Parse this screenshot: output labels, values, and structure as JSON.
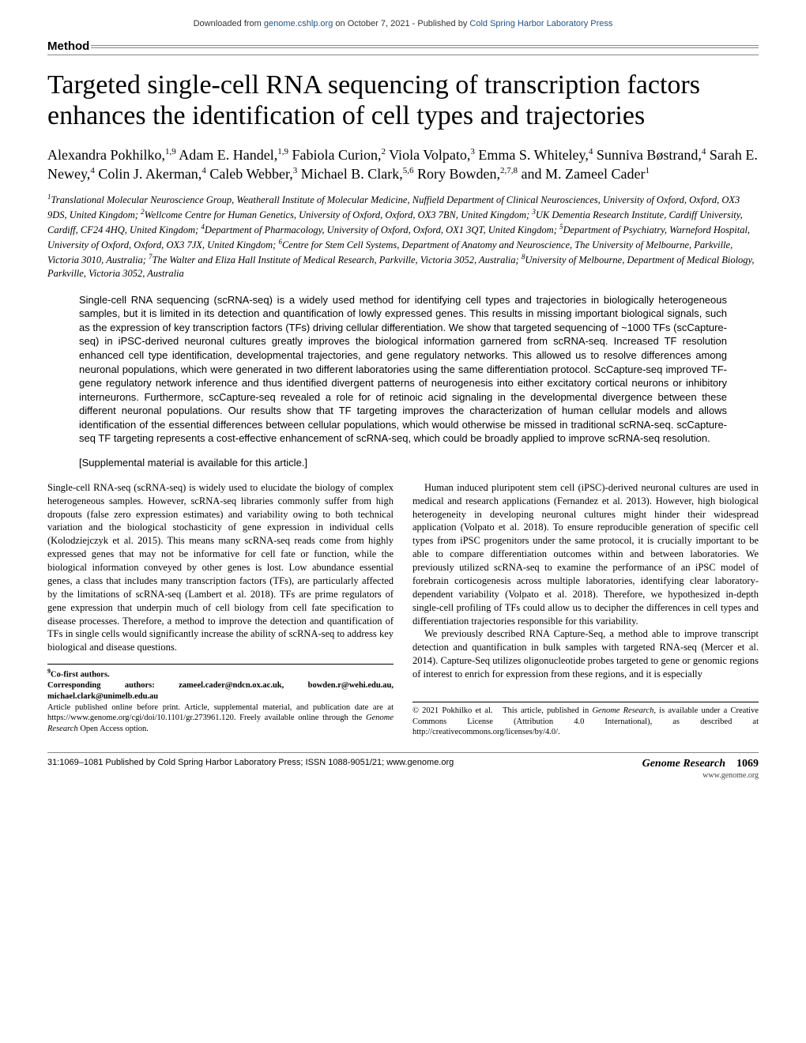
{
  "download_bar": {
    "prefix": "Downloaded from ",
    "link1": "genome.cshlp.org",
    "mid": " on October 7, 2021 - Published by ",
    "link2": "Cold Spring Harbor Laboratory Press"
  },
  "section_label": "Method",
  "title": "Targeted single-cell RNA sequencing of transcription factors enhances the identification of cell types and trajectories",
  "authors_html": "Alexandra Pokhilko,<sup>1,9</sup> Adam E. Handel,<sup>1,9</sup> Fabiola Curion,<sup>2</sup> Viola Volpato,<sup>3</sup> Emma S. Whiteley,<sup>4</sup> Sunniva Bøstrand,<sup>4</sup> Sarah E. Newey,<sup>4</sup> Colin J. Akerman,<sup>4</sup> Caleb Webber,<sup>3</sup> Michael B. Clark,<sup>5,6</sup> Rory Bowden,<sup>2,7,8</sup> and M. Zameel Cader<sup>1</sup>",
  "affiliations_html": "<sup>1</sup>Translational Molecular Neuroscience Group, Weatherall Institute of Molecular Medicine, Nuffield Department of Clinical Neurosciences, University of Oxford, Oxford, OX3 9DS, United Kingdom; <sup>2</sup>Wellcome Centre for Human Genetics, University of Oxford, Oxford, OX3 7BN, United Kingdom; <sup>3</sup>UK Dementia Research Institute, Cardiff University, Cardiff, CF24 4HQ, United Kingdom; <sup>4</sup>Department of Pharmacology, University of Oxford, Oxford, OX1 3QT, United Kingdom; <sup>5</sup>Department of Psychiatry, Warneford Hospital, University of Oxford, Oxford, OX3 7JX, United Kingdom; <sup>6</sup>Centre for Stem Cell Systems, Department of Anatomy and Neuroscience, The University of Melbourne, Parkville, Victoria 3010, Australia; <sup>7</sup>The Walter and Eliza Hall Institute of Medical Research, Parkville, Victoria 3052, Australia; <sup>8</sup>University of Melbourne, Department of Medical Biology, Parkville, Victoria 3052, Australia",
  "abstract": "Single-cell RNA sequencing (scRNA-seq) is a widely used method for identifying cell types and trajectories in biologically heterogeneous samples, but it is limited in its detection and quantification of lowly expressed genes. This results in missing important biological signals, such as the expression of key transcription factors (TFs) driving cellular differentiation. We show that targeted sequencing of ~1000 TFs (scCapture-seq) in iPSC-derived neuronal cultures greatly improves the biological information garnered from scRNA-seq. Increased TF resolution enhanced cell type identification, developmental trajectories, and gene regulatory networks. This allowed us to resolve differences among neuronal populations, which were generated in two different laboratories using the same differentiation protocol. ScCapture-seq improved TF-gene regulatory network inference and thus identified divergent patterns of neurogenesis into either excitatory cortical neurons or inhibitory interneurons. Furthermore, scCapture-seq revealed a role for of retinoic acid signaling in the developmental divergence between these different neuronal populations. Our results show that TF targeting improves the characterization of human cellular models and allows identification of the essential differences between cellular populations, which would otherwise be missed in traditional scRNA-seq. scCapture-seq TF targeting represents a cost-effective enhancement of scRNA-seq, which could be broadly applied to improve scRNA-seq resolution.",
  "supplemental": "[Supplemental material is available for this article.]",
  "body": {
    "left_col": {
      "p1": "Single-cell RNA-seq (scRNA-seq) is widely used to elucidate the biology of complex heterogeneous samples. However, scRNA-seq libraries commonly suffer from high dropouts (false zero expression estimates) and variability owing to both technical variation and the biological stochasticity of gene expression in individual cells (Kolodziejczyk et al. 2015). This means many scRNA-seq reads come from highly expressed genes that may not be informative for cell fate or function, while the biological information conveyed by other genes is lost. Low abundance essential genes, a class that includes many transcription factors (TFs), are particularly affected by the limitations of scRNA-seq (Lambert et al. 2018). TFs are prime regulators of gene expression that underpin much of cell biology from cell fate specification to disease processes. Therefore, a method to improve the detection and quantification of TFs in single cells would significantly increase the ability of scRNA-seq to address key biological and disease questions."
    },
    "right_col": {
      "p1": "Human induced pluripotent stem cell (iPSC)-derived neuronal cultures are used in medical and research applications (Fernandez et al. 2013). However, high biological heterogeneity in developing neuronal cultures might hinder their widespread application (Volpato et al. 2018). To ensure reproducible generation of specific cell types from iPSC progenitors under the same protocol, it is crucially important to be able to compare differentiation outcomes within and between laboratories. We previously utilized scRNA-seq to examine the performance of an iPSC model of forebrain corticogenesis across multiple laboratories, identifying clear laboratory-dependent variability (Volpato et al. 2018). Therefore, we hypothesized in-depth single-cell profiling of TFs could allow us to decipher the differences in cell types and differentiation trajectories responsible for this variability.",
      "p2": "We previously described RNA Capture-Seq, a method able to improve transcript detection and quantification in bulk samples with targeted RNA-seq (Mercer et al. 2014). Capture-Seq utilizes oligonucleotide probes targeted to gene or genomic regions of interest to enrich for expression from these regions, and it is especially"
    }
  },
  "footnotes": {
    "left": {
      "cofirst_html": "<sup>9</sup>Co-first authors.",
      "corresponding_label": "Corresponding authors: ",
      "emails": "zameel.cader@ndcn.ox.ac.uk, bowden.r@wehi.edu.au, michael.clark@unimelb.edu.au",
      "article_info_html": "Article published online before print. Article, supplemental material, and publication date are at https://www.genome.org/cgi/doi/10.1101/gr.273961.120. Freely available online through the <i>Genome Research</i> Open Access option."
    },
    "right_html": "© 2021 Pokhilko et al.&nbsp;&nbsp;&nbsp;This article, published in <i>Genome Research</i>, is available under a Creative Commons License (Attribution 4.0 International), as described at http://creativecommons.org/licenses/by/4.0/."
  },
  "footer": {
    "left": "31:1069–1081 Published by Cold Spring Harbor Laboratory Press; ISSN 1088-9051/21; www.genome.org",
    "journal": "Genome Research",
    "pagenum": "1069",
    "url": "www.genome.org"
  }
}
